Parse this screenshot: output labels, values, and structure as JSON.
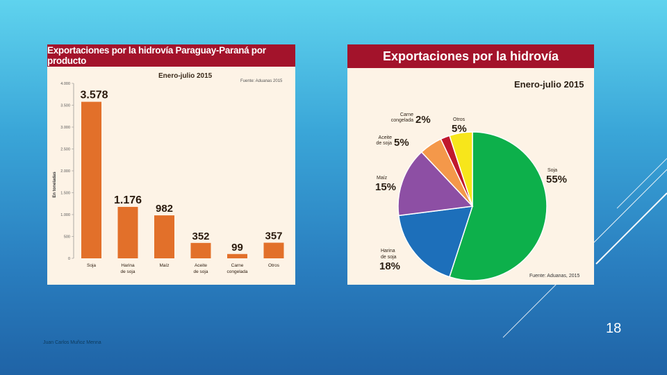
{
  "slide": {
    "number": "18",
    "author": "Juan Carlos Muñoz Menna"
  },
  "chart_data": [
    {
      "type": "bar",
      "title": "Exportaciones por la hidrovía Paraguay-Paraná por producto",
      "subtitle": "Enero-julio 2015",
      "source": "Fuente: Aduanas 2015",
      "ylabel": "En toneladas",
      "ylim": [
        0,
        4000
      ],
      "yticks": [
        0,
        500,
        1000,
        1500,
        2000,
        2500,
        3000,
        3500,
        4000
      ],
      "ytick_labels": [
        "0",
        "500",
        "1.000",
        "1.500",
        "2.000",
        "2.500",
        "3.000",
        "3.500",
        "4.000"
      ],
      "categories": [
        [
          "Soja"
        ],
        [
          "Harina",
          "de soja"
        ],
        [
          "Maíz"
        ],
        [
          "Aceite",
          "de soja"
        ],
        [
          "Carne",
          "congelada"
        ],
        [
          "Otros"
        ]
      ],
      "values": [
        3578,
        1176,
        982,
        352,
        99,
        357
      ],
      "value_labels": [
        "3.578",
        "1.176",
        "982",
        "352",
        "99",
        "357"
      ],
      "color": "#e2702a"
    },
    {
      "type": "pie",
      "title": "Exportaciones por la hidrovía",
      "subtitle": "Enero-julio 2015",
      "source": "Fuente: Aduanas, 2015",
      "slices": [
        {
          "label": [
            "Soja"
          ],
          "value": 55,
          "pct_label": "55%",
          "color": "#0db04b"
        },
        {
          "label": [
            "Harina",
            "de soja"
          ],
          "value": 18,
          "pct_label": "18%",
          "color": "#1d6fba"
        },
        {
          "label": [
            "Maíz"
          ],
          "value": 15,
          "pct_label": "15%",
          "color": "#8d4fa4"
        },
        {
          "label": [
            "Aceite",
            "de soja"
          ],
          "value": 5,
          "pct_label": "5%",
          "color": "#f4984a"
        },
        {
          "label": [
            "Carne",
            "congelada"
          ],
          "value": 2,
          "pct_label": "2%",
          "color": "#c0182d"
        },
        {
          "label": [
            "Otros"
          ],
          "value": 5,
          "pct_label": "5%",
          "color": "#f7e61b"
        }
      ]
    }
  ]
}
